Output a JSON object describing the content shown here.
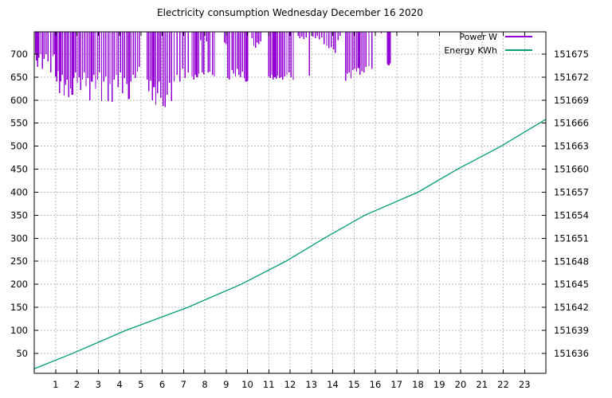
{
  "title": "Electricity consumption Wednesday December 16 2020",
  "legend": {
    "position": "top-right-inside",
    "items": [
      {
        "label": "Power W",
        "color": "#9400d3"
      },
      {
        "label": "Energy KWh",
        "color": "#009e73"
      }
    ]
  },
  "colors": {
    "power": "#9400d3",
    "energy": "#009e73",
    "grid": "#bbbbbb",
    "axis": "#000000",
    "background": "#ffffff",
    "text": "#000000"
  },
  "chart_data": {
    "type": "line",
    "title": "Electricity consumption Wednesday December 16 2020",
    "grid": true,
    "legend_position": "top-right-inside",
    "x_axis": {
      "label": "",
      "range": [
        0,
        24
      ],
      "ticks": [
        1,
        2,
        3,
        4,
        5,
        6,
        7,
        8,
        9,
        10,
        11,
        12,
        13,
        14,
        15,
        16,
        17,
        18,
        19,
        20,
        21,
        22,
        23
      ]
    },
    "y_left_axis": {
      "name": "Power W",
      "range": [
        6.6,
        748.4
      ],
      "ticks": [
        50,
        100,
        150,
        200,
        250,
        300,
        350,
        400,
        450,
        500,
        550,
        600,
        650,
        700
      ]
    },
    "y_right_axis": {
      "name": "Energy KWh",
      "range": [
        151633.4,
        151677.9
      ],
      "ticks": [
        151636,
        151639,
        151642,
        151645,
        151648,
        151651,
        151654,
        151657,
        151660,
        151663,
        151666,
        151669,
        151672,
        151675
      ]
    },
    "series": [
      {
        "name": "Power W",
        "axis": "left",
        "color": "#9400d3",
        "style": "spikes-from-top",
        "spike_top_w": 748.4,
        "points": [
          [
            0.06,
            700
          ],
          [
            0.1,
            686
          ],
          [
            0.16,
            672
          ],
          [
            0.22,
            692
          ],
          [
            0.3,
            700
          ],
          [
            0.38,
            668
          ],
          [
            0.46,
            690
          ],
          [
            0.55,
            700
          ],
          [
            0.65,
            684
          ],
          [
            0.78,
            660
          ],
          [
            0.88,
            696
          ],
          [
            0.95,
            700
          ],
          [
            1.0,
            652
          ],
          [
            1.06,
            640
          ],
          [
            1.12,
            663
          ],
          [
            1.18,
            615
          ],
          [
            1.25,
            641
          ],
          [
            1.32,
            655
          ],
          [
            1.4,
            610
          ],
          [
            1.47,
            633
          ],
          [
            1.54,
            645
          ],
          [
            1.62,
            607
          ],
          [
            1.7,
            626
          ],
          [
            1.78,
            612,
            2.5
          ],
          [
            1.86,
            648
          ],
          [
            1.94,
            660
          ],
          [
            2.02,
            638
          ],
          [
            2.1,
            650
          ],
          [
            2.18,
            622
          ],
          [
            2.26,
            645
          ],
          [
            2.34,
            660
          ],
          [
            2.43,
            630
          ],
          [
            2.52,
            648
          ],
          [
            2.61,
            600
          ],
          [
            2.7,
            640,
            2.5
          ],
          [
            2.79,
            655
          ],
          [
            2.88,
            625
          ],
          [
            2.97,
            645
          ],
          [
            3.06,
            660
          ],
          [
            3.16,
            598
          ],
          [
            3.26,
            640
          ],
          [
            3.36,
            652
          ],
          [
            3.46,
            598
          ],
          [
            3.55,
            635
          ],
          [
            3.65,
            596
          ],
          [
            3.75,
            645
          ],
          [
            3.85,
            655
          ],
          [
            3.94,
            628
          ],
          [
            4.04,
            660
          ],
          [
            4.14,
            615
          ],
          [
            4.24,
            648
          ],
          [
            4.34,
            635
          ],
          [
            4.44,
            602,
            2.5
          ],
          [
            4.54,
            640
          ],
          [
            4.64,
            655
          ],
          [
            4.74,
            648
          ],
          [
            4.84,
            662
          ],
          [
            4.92,
            672
          ],
          [
            5.3,
            645
          ],
          [
            5.38,
            620
          ],
          [
            5.46,
            642
          ],
          [
            5.54,
            600
          ],
          [
            5.62,
            628,
            2.5
          ],
          [
            5.7,
            590
          ],
          [
            5.78,
            615
          ],
          [
            5.86,
            640
          ],
          [
            5.94,
            605
          ],
          [
            6.04,
            588
          ],
          [
            6.14,
            585
          ],
          [
            6.24,
            612
          ],
          [
            6.34,
            638
          ],
          [
            6.44,
            598
          ],
          [
            6.56,
            640
          ],
          [
            6.7,
            655
          ],
          [
            6.83,
            640
          ],
          [
            6.96,
            668
          ],
          [
            7.08,
            648
          ],
          [
            7.22,
            660
          ],
          [
            7.4,
            652
          ],
          [
            7.48,
            645
          ],
          [
            7.56,
            655
          ],
          [
            7.64,
            650,
            2.5
          ],
          [
            7.72,
            658
          ],
          [
            7.8,
            730
          ],
          [
            7.88,
            660
          ],
          [
            7.96,
            656
          ],
          [
            8.08,
            728
          ],
          [
            8.16,
            660
          ],
          [
            8.24,
            662
          ],
          [
            8.36,
            655
          ],
          [
            8.45,
            652
          ],
          [
            8.93,
            725
          ],
          [
            9.0,
            722
          ],
          [
            9.08,
            648
          ],
          [
            9.15,
            645
          ],
          [
            9.28,
            665
          ],
          [
            9.36,
            658
          ],
          [
            9.44,
            652
          ],
          [
            9.52,
            668
          ],
          [
            9.6,
            655
          ],
          [
            9.68,
            650
          ],
          [
            9.76,
            662
          ],
          [
            9.85,
            648
          ],
          [
            9.94,
            640,
            3
          ],
          [
            10.02,
            642
          ],
          [
            10.22,
            735
          ],
          [
            10.3,
            718
          ],
          [
            10.38,
            714
          ],
          [
            10.46,
            725
          ],
          [
            10.54,
            722
          ],
          [
            10.62,
            728
          ],
          [
            11.0,
            652
          ],
          [
            11.07,
            648
          ],
          [
            11.14,
            655
          ],
          [
            11.21,
            645
          ],
          [
            11.28,
            650,
            2.5
          ],
          [
            11.35,
            646
          ],
          [
            11.42,
            653
          ],
          [
            11.5,
            648
          ],
          [
            11.58,
            650
          ],
          [
            11.66,
            645
          ],
          [
            11.75,
            652
          ],
          [
            11.85,
            655
          ],
          [
            11.95,
            660
          ],
          [
            12.05,
            650
          ],
          [
            12.15,
            644
          ],
          [
            12.38,
            740
          ],
          [
            12.46,
            735
          ],
          [
            12.55,
            738
          ],
          [
            12.65,
            733
          ],
          [
            12.75,
            736
          ],
          [
            12.9,
            653
          ],
          [
            13.08,
            738
          ],
          [
            13.18,
            735
          ],
          [
            13.28,
            740
          ],
          [
            13.38,
            732
          ],
          [
            13.48,
            736
          ],
          [
            13.6,
            722
          ],
          [
            13.72,
            718
          ],
          [
            13.82,
            713
          ],
          [
            13.94,
            715
          ],
          [
            14.05,
            710
          ],
          [
            14.12,
            703
          ],
          [
            14.25,
            730
          ],
          [
            14.34,
            740
          ],
          [
            14.6,
            642
          ],
          [
            14.68,
            658
          ],
          [
            14.77,
            660
          ],
          [
            14.86,
            647
          ],
          [
            14.95,
            665
          ],
          [
            15.04,
            668
          ],
          [
            15.12,
            662
          ],
          [
            15.2,
            670,
            2.5
          ],
          [
            15.28,
            655
          ],
          [
            15.37,
            663
          ],
          [
            15.46,
            660
          ],
          [
            15.56,
            672
          ],
          [
            15.7,
            674
          ],
          [
            15.84,
            668
          ],
          [
            16.28,
            745
          ],
          [
            16.56,
            678
          ],
          [
            16.63,
            676,
            2.5
          ],
          [
            16.7,
            680
          ]
        ]
      },
      {
        "name": "Energy KWh",
        "axis": "right",
        "color": "#009e73",
        "style": "line",
        "points": [
          [
            0,
            151634.0
          ],
          [
            1.8,
            151636
          ],
          [
            4.3,
            151639
          ],
          [
            7.2,
            151642
          ],
          [
            9.7,
            151645
          ],
          [
            11.8,
            151648
          ],
          [
            13.6,
            151651
          ],
          [
            15.5,
            151654
          ],
          [
            18.0,
            151657
          ],
          [
            19.85,
            151660
          ],
          [
            21.9,
            151663
          ],
          [
            23.7,
            151666
          ],
          [
            24,
            151666.5
          ]
        ]
      }
    ]
  }
}
